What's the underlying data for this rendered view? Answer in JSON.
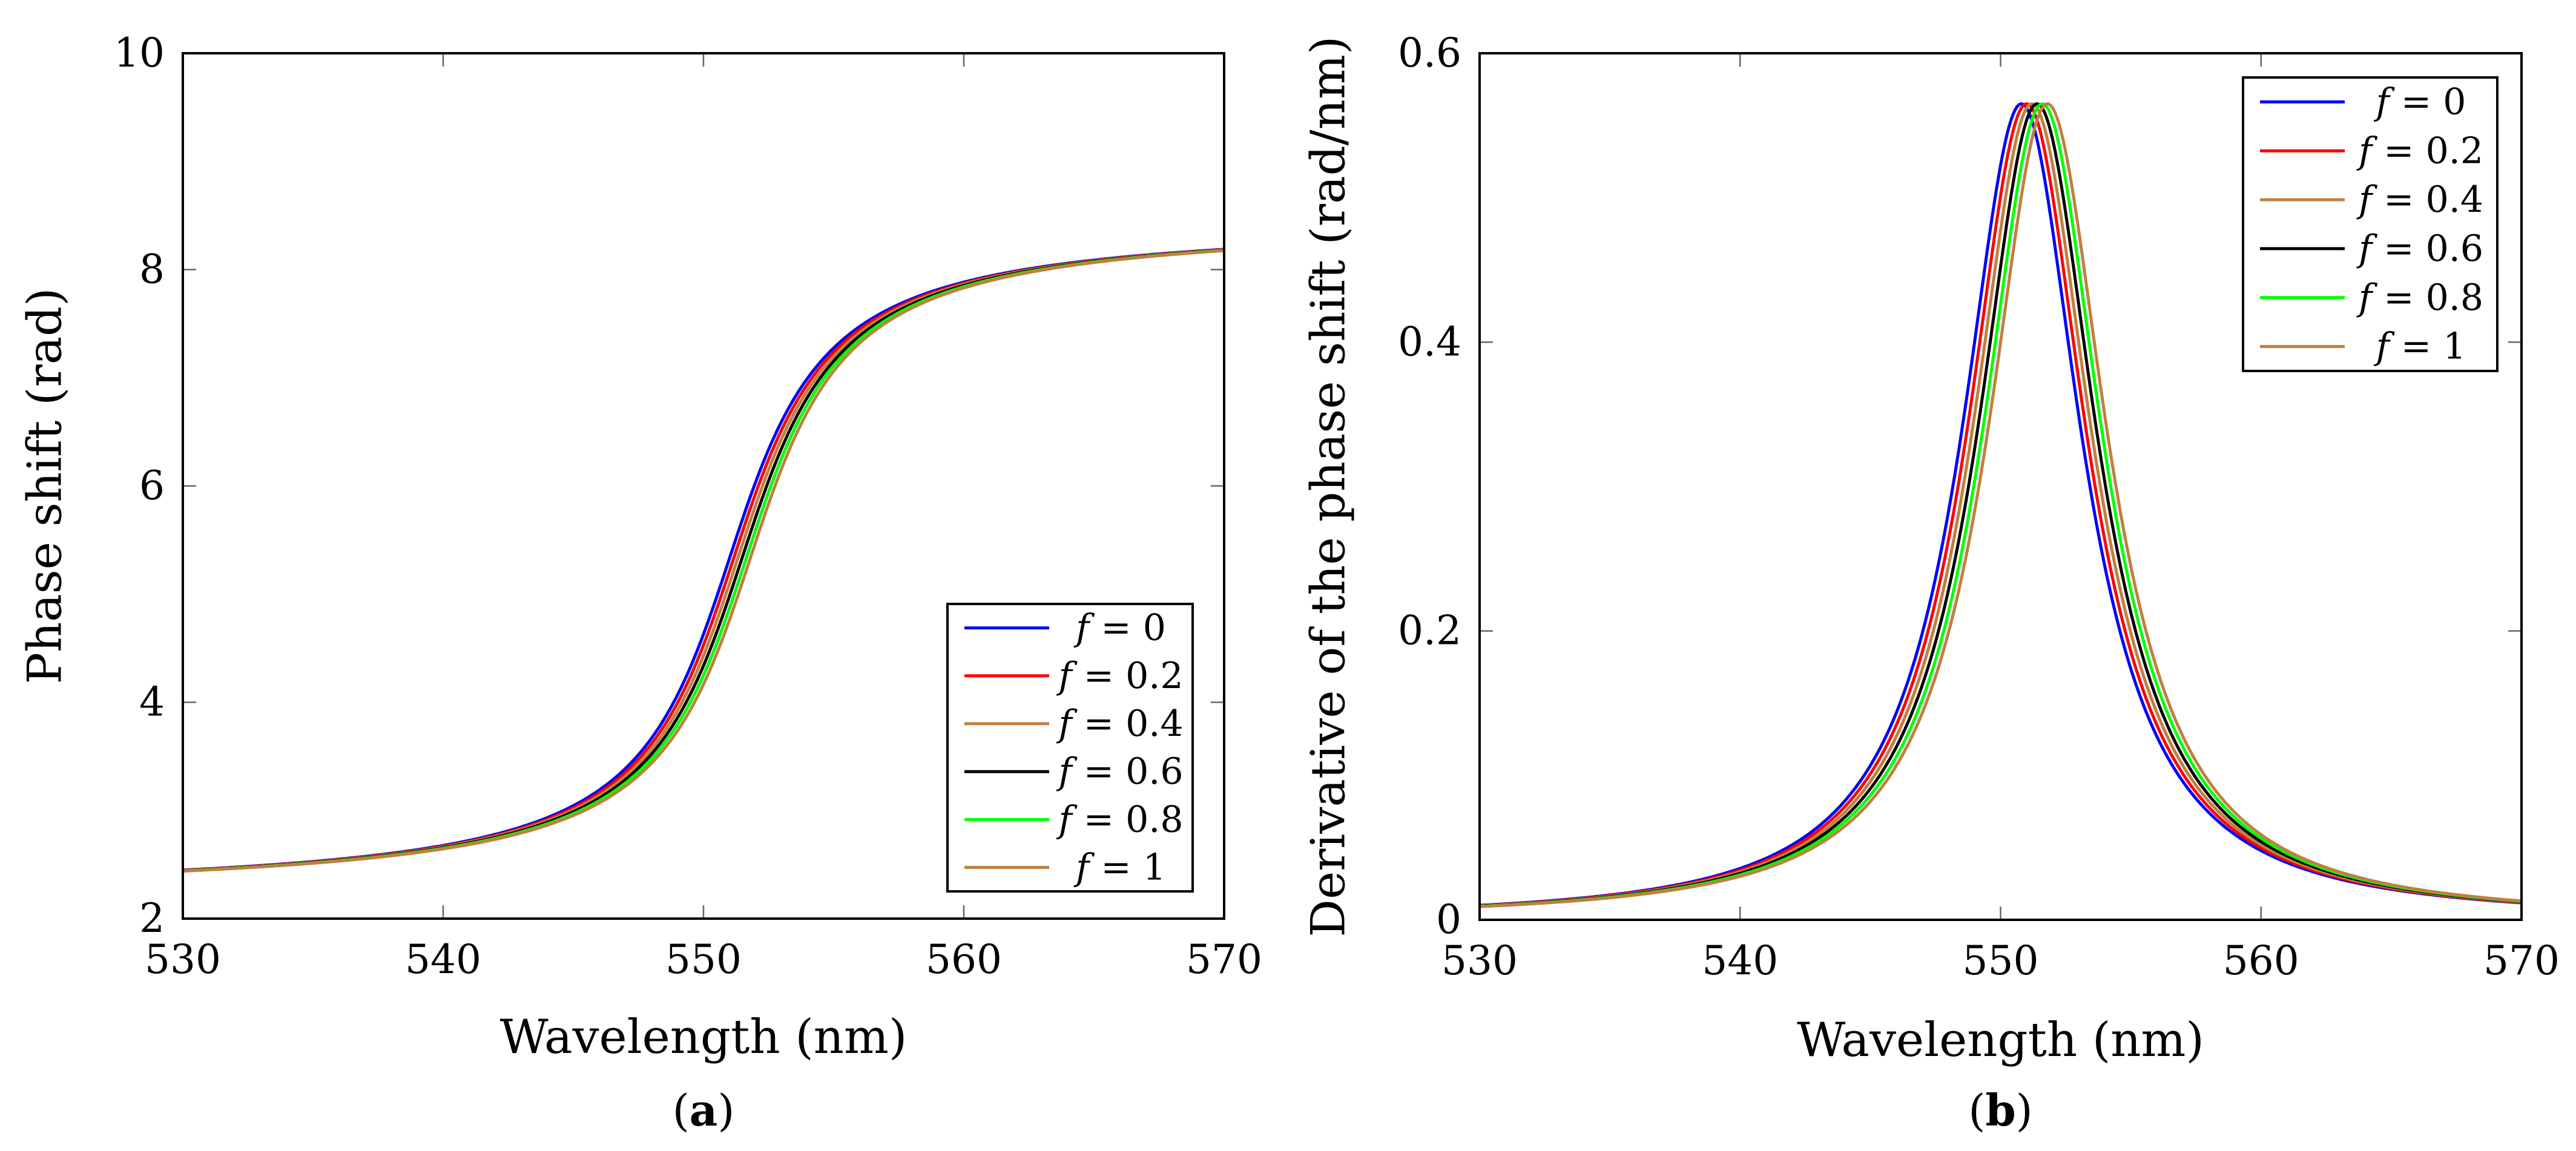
{
  "panels": {
    "a": {
      "label_open": "(",
      "label_letter": "a",
      "label_close": ")"
    },
    "b": {
      "label_open": "(",
      "label_letter": "b",
      "label_close": ")"
    }
  },
  "legend_f_symbol": "f",
  "chart_data": [
    {
      "type": "line",
      "panel": "a",
      "title": "",
      "xlabel": "Wavelength (nm)",
      "ylabel": "Phase shift (rad)",
      "xlim": [
        530,
        570
      ],
      "ylim": [
        2,
        10
      ],
      "xticks": [
        530,
        540,
        550,
        560,
        570
      ],
      "yticks": [
        2,
        4,
        6,
        8,
        10
      ],
      "legend_position": "bottom-right",
      "model": {
        "kind": "phase",
        "center_nm": 551.0,
        "half_width_nm": 2.73,
        "offset_rad": 2.19
      },
      "series": [
        {
          "name": "= 0",
          "color": "#0000ff",
          "center_shift_nm": 0.0
        },
        {
          "name": "= 0.2",
          "color": "#ff0000",
          "center_shift_nm": 0.16
        },
        {
          "name": "= 0.4",
          "color": "#bf8040",
          "center_shift_nm": 0.32
        },
        {
          "name": "= 0.6",
          "color": "#000000",
          "center_shift_nm": 0.48
        },
        {
          "name": "= 0.8",
          "color": "#00ff00",
          "center_shift_nm": 0.64
        },
        {
          "name": "= 1",
          "color": "#bf8040",
          "center_shift_nm": 0.8
        }
      ]
    },
    {
      "type": "line",
      "panel": "b",
      "title": "",
      "xlabel": "Wavelength (nm)",
      "ylabel": "Derivative of the phase shift (rad/nm)",
      "xlim": [
        530,
        570
      ],
      "ylim": [
        0,
        0.6
      ],
      "xticks": [
        530,
        540,
        550,
        560,
        570
      ],
      "yticks": [
        0,
        0.2,
        0.4,
        0.6
      ],
      "legend_position": "top-right",
      "model": {
        "kind": "derivative",
        "center_nm": 550.8,
        "half_width_nm": 2.8,
        "peak": 0.565
      },
      "series": [
        {
          "name": "= 0",
          "color": "#0000ff",
          "center_shift_nm": 0.0
        },
        {
          "name": "= 0.2",
          "color": "#ff0000",
          "center_shift_nm": 0.2
        },
        {
          "name": "= 0.4",
          "color": "#bf8040",
          "center_shift_nm": 0.4
        },
        {
          "name": "= 0.6",
          "color": "#000000",
          "center_shift_nm": 0.6
        },
        {
          "name": "= 0.8",
          "color": "#00ff00",
          "center_shift_nm": 0.8
        },
        {
          "name": "= 1",
          "color": "#bf8040",
          "center_shift_nm": 1.0
        }
      ]
    }
  ]
}
